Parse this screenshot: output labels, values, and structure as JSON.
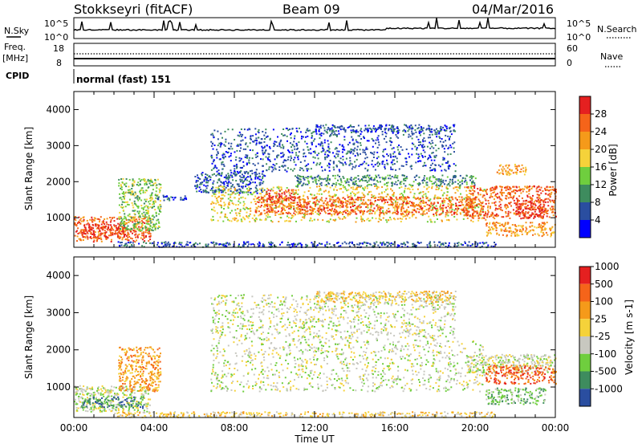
{
  "header": {
    "station": "Stokkseyri (fitACF)",
    "beam": "Beam 09",
    "date": "04/Mar/2016"
  },
  "top_labels": {
    "nsky": "N.Sky",
    "nsearch": "N.Search",
    "freq": "Freq.",
    "mhz": "[MHz]",
    "nave": "Nave",
    "cpid": "CPID",
    "cpid_value": "normal (fast) 151",
    "noise_ticks": [
      "10^5",
      "10^0"
    ],
    "freq_ticks": [
      "18",
      "8"
    ],
    "nave_ticks": [
      "60",
      "0"
    ]
  },
  "time_axis": {
    "ticks": [
      "00:00",
      "04:00",
      "08:00",
      "12:00",
      "16:00",
      "20:00",
      "00:00"
    ],
    "label": "Time UT"
  },
  "range_axis": {
    "ticks": [
      "1000",
      "2000",
      "3000",
      "4000"
    ],
    "label": "Slant Range [km]"
  },
  "chart_data": [
    {
      "type": "heatmap",
      "parameter": "Power",
      "colorbar_label": "Power [dB]",
      "colorbar_ticks": [
        "4",
        "8",
        "12",
        "16",
        "20",
        "24",
        "28"
      ],
      "colors": [
        "#0000ff",
        "#2a4ea0",
        "#3e8c5e",
        "#6fce3e",
        "#f5d23a",
        "#f59a1a",
        "#f5641a",
        "#e52020"
      ],
      "xlabel": "Time UT",
      "ylabel": "Slant Range [km]",
      "xlim_hours": [
        0,
        24
      ],
      "ylim_km": [
        180,
        4500
      ],
      "regions": [
        {
          "t0": 0.0,
          "t1": 3.8,
          "r0": 350,
          "r1": 1050,
          "level": 6
        },
        {
          "t0": 0.3,
          "t1": 2.6,
          "r0": 450,
          "r1": 850,
          "level": 7
        },
        {
          "t0": 2.2,
          "t1": 4.3,
          "r0": 650,
          "r1": 2100,
          "level": 3
        },
        {
          "t0": 4.0,
          "t1": 5.6,
          "r0": 1500,
          "r1": 1650,
          "level": 1
        },
        {
          "t0": 6.0,
          "t1": 9.5,
          "r0": 1700,
          "r1": 2300,
          "level": 1
        },
        {
          "t0": 6.8,
          "t1": 20.5,
          "r0": 900,
          "r1": 1900,
          "level": 4
        },
        {
          "t0": 9.0,
          "t1": 20.0,
          "r0": 1100,
          "r1": 1600,
          "level": 6
        },
        {
          "t0": 9.5,
          "t1": 11.0,
          "r0": 1500,
          "r1": 1800,
          "level": 7
        },
        {
          "t0": 11.0,
          "t1": 20.0,
          "r0": 1900,
          "r1": 2200,
          "level": 2
        },
        {
          "t0": 6.8,
          "t1": 19.0,
          "r0": 2300,
          "r1": 3500,
          "level": 1
        },
        {
          "t0": 12.0,
          "t1": 19.0,
          "r0": 3400,
          "r1": 3600,
          "level": 1
        },
        {
          "t0": 19.5,
          "t1": 24.0,
          "r0": 1000,
          "r1": 1900,
          "level": 6
        },
        {
          "t0": 22.0,
          "t1": 23.5,
          "r0": 1000,
          "r1": 1500,
          "level": 7
        },
        {
          "t0": 20.5,
          "t1": 24.0,
          "r0": 500,
          "r1": 900,
          "level": 5
        },
        {
          "t0": 21.0,
          "t1": 22.5,
          "r0": 2200,
          "r1": 2500,
          "level": 5
        },
        {
          "t0": 2.0,
          "t1": 21.0,
          "r0": 200,
          "r1": 350,
          "level": 1
        }
      ]
    },
    {
      "type": "heatmap",
      "parameter": "Velocity",
      "colorbar_label": "Velocity [m s-1]",
      "colorbar_ticks": [
        "1000",
        "500",
        "100",
        "25",
        "-25",
        "-100",
        "-500",
        "-1000"
      ],
      "colors": [
        "#2a4ea0",
        "#3e8c5e",
        "#6fce3e",
        "#c8c8c0",
        "#f5d23a",
        "#f59a1a",
        "#f5641a",
        "#e52020"
      ],
      "xlabel": "Time UT",
      "ylabel": "Slant Range [km]",
      "xlim_hours": [
        0,
        24
      ],
      "ylim_km": [
        180,
        4500
      ],
      "regions": [
        {
          "t0": 0.0,
          "t1": 3.8,
          "r0": 350,
          "r1": 1050,
          "level": 3
        },
        {
          "t0": 0.3,
          "t1": 3.5,
          "r0": 450,
          "r1": 750,
          "level": 1
        },
        {
          "t0": 2.2,
          "t1": 4.3,
          "r0": 900,
          "r1": 2100,
          "level": 5
        },
        {
          "t0": 6.8,
          "t1": 20.5,
          "r0": 900,
          "r1": 2300,
          "level": 3
        },
        {
          "t0": 6.8,
          "t1": 19.0,
          "r0": 2300,
          "r1": 3500,
          "level": 3
        },
        {
          "t0": 12.0,
          "t1": 19.0,
          "r0": 3300,
          "r1": 3600,
          "level": 4
        },
        {
          "t0": 19.5,
          "t1": 24.0,
          "r0": 1400,
          "r1": 1900,
          "level": 3
        },
        {
          "t0": 20.5,
          "t1": 24.0,
          "r0": 1100,
          "r1": 1600,
          "level": 6
        },
        {
          "t0": 20.5,
          "t1": 23.5,
          "r0": 550,
          "r1": 1000,
          "level": 2
        },
        {
          "t0": 2.0,
          "t1": 21.0,
          "r0": 200,
          "r1": 350,
          "level": 4
        }
      ]
    }
  ]
}
